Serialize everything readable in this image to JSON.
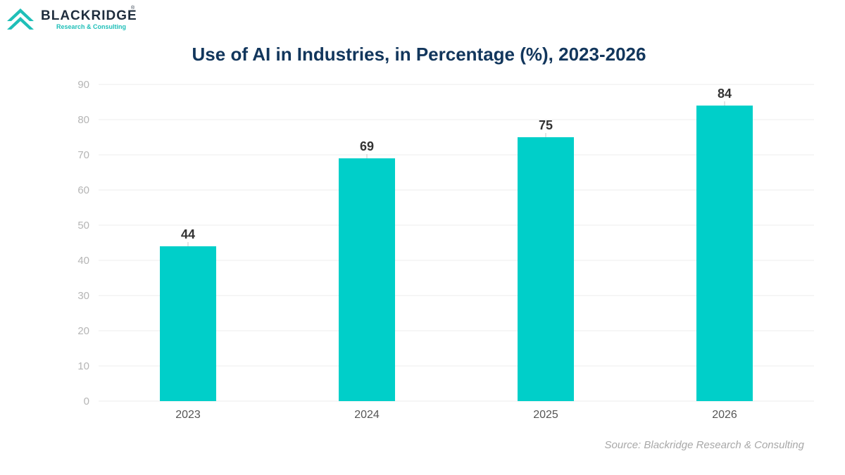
{
  "brand": {
    "name": "BLACKRIDGE",
    "tagline": "Research & Consulting",
    "registered_mark": "®",
    "colors": {
      "teal": "#1fbfb8",
      "dark": "#1f2d3d"
    }
  },
  "source": "Source: Blackridge Research & Consulting",
  "chart_data": {
    "type": "bar",
    "title": "Use of AI in Industries, in Percentage (%), 2023-2026",
    "xlabel": "",
    "ylabel": "",
    "categories": [
      "2023",
      "2024",
      "2025",
      "2026"
    ],
    "values": [
      44,
      69,
      75,
      84
    ],
    "data_labels": [
      "44",
      "69",
      "75",
      "84"
    ],
    "ylim": [
      0,
      90
    ],
    "yticks": [
      0,
      10,
      20,
      30,
      40,
      50,
      60,
      70,
      80,
      90
    ],
    "grid": true,
    "legend": "none",
    "bar_color": "#00cfc9",
    "title_color": "#12365c"
  }
}
